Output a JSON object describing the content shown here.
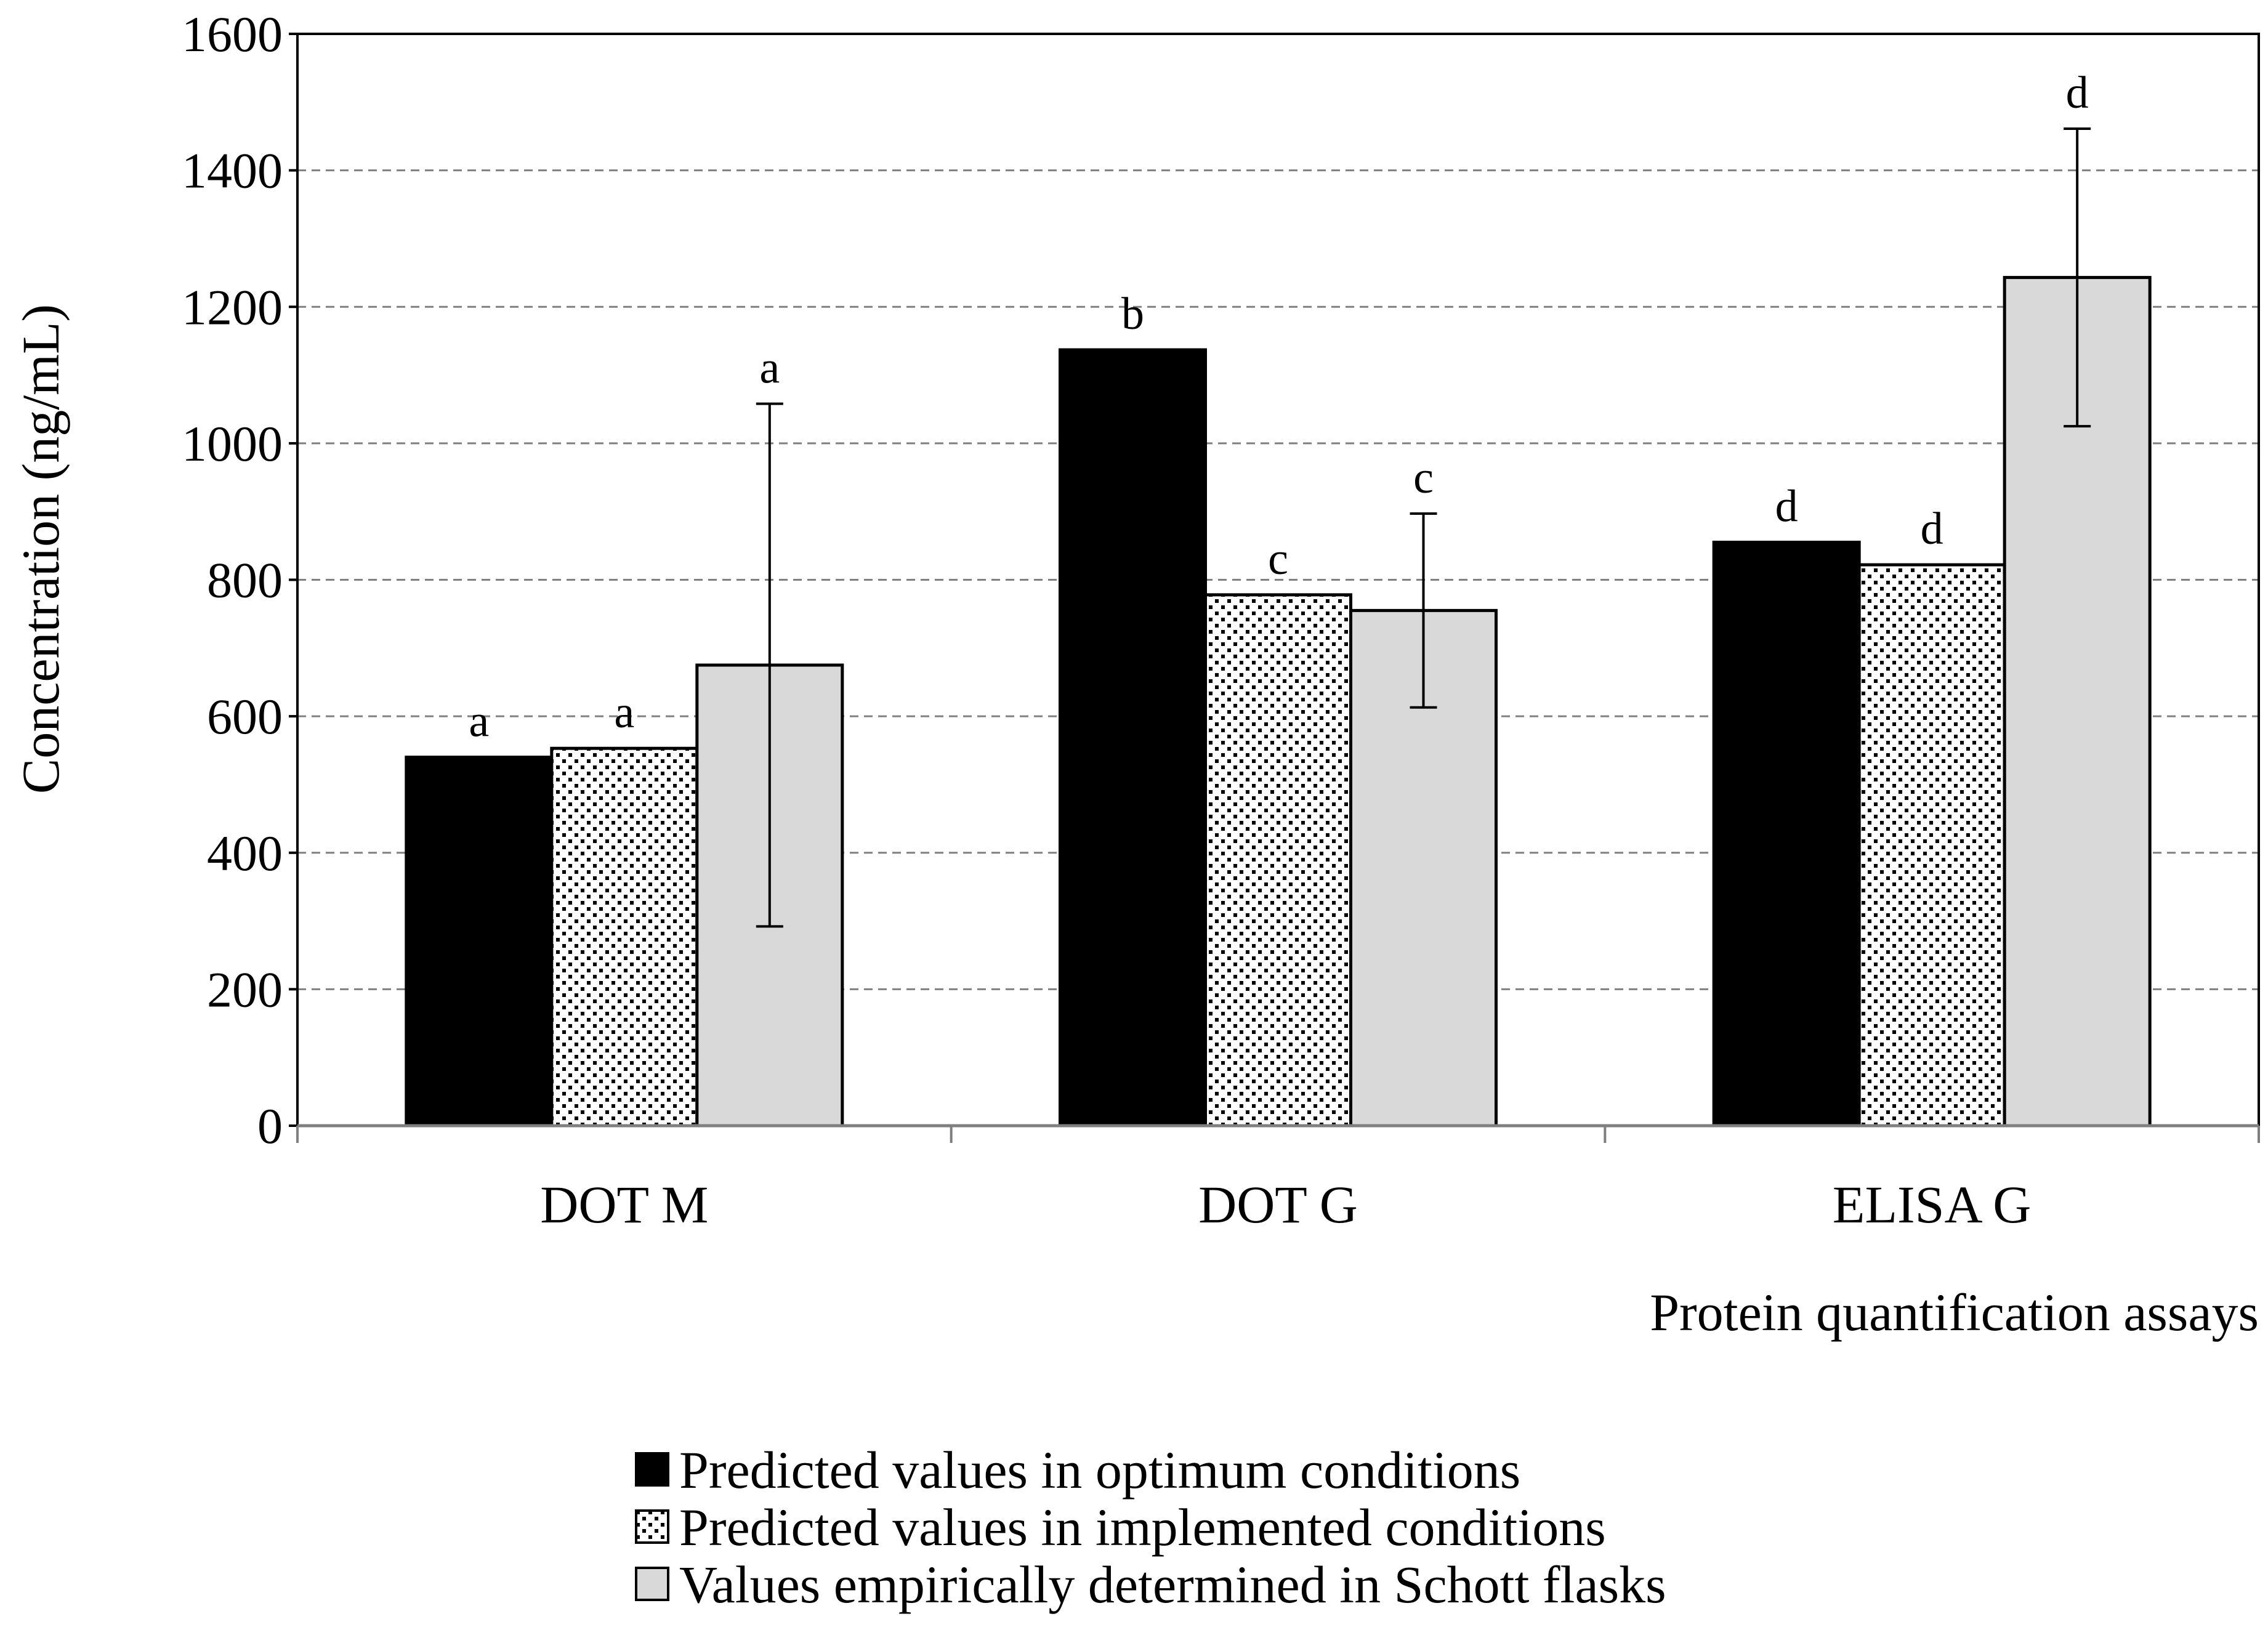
{
  "chart_data": {
    "type": "bar",
    "title": "",
    "xlabel": "Protein quantification assays",
    "ylabel": "Concentration (ng/mL)",
    "ylim": [
      0,
      1600
    ],
    "yticks": [
      0,
      200,
      400,
      600,
      800,
      1000,
      1200,
      1400,
      1600
    ],
    "ytick_labels": [
      "0",
      "200",
      "400",
      "600",
      "800",
      "1000",
      "1200",
      "1400",
      "1600"
    ],
    "grid": "horizontal dashed",
    "legend_position": "bottom",
    "categories": [
      "DOT M",
      "DOT G",
      "ELISA G"
    ],
    "series": [
      {
        "name": "Predicted values in optimum conditions",
        "fill": "#000000",
        "pattern": "solid",
        "values": [
          540,
          1137,
          855
        ],
        "letters": [
          "a",
          "b",
          "d"
        ],
        "errors": [
          null,
          null,
          null
        ]
      },
      {
        "name": "Predicted values in implemented conditions",
        "fill": "#ffffff",
        "pattern": "dots",
        "values": [
          553,
          778,
          822
        ],
        "letters": [
          "a",
          "c",
          "d"
        ],
        "errors": [
          null,
          null,
          null
        ]
      },
      {
        "name": "Values empirically determined in Schott flasks",
        "fill": "#d9d9d9",
        "pattern": "solid",
        "values": [
          675,
          755,
          1243
        ],
        "letters": [
          "a",
          "c",
          "d"
        ],
        "errors": [
          383,
          142,
          218
        ]
      }
    ]
  }
}
